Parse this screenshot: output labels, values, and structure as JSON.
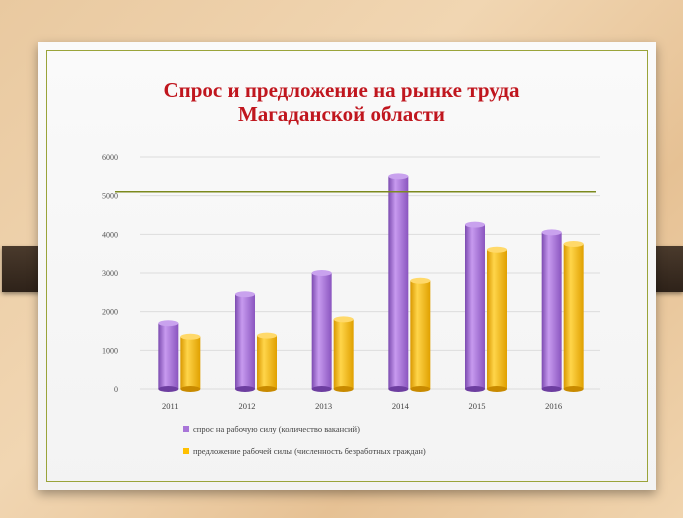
{
  "colors": {
    "demand": "#a875d8",
    "supply": "#ffc000",
    "title": "#c0161e",
    "refline": "#7c8a1e"
  },
  "chart_data": {
    "type": "bar",
    "title": "Спрос и предложение на рынке труда Магаданской области",
    "title_lines": [
      "Спрос и предложение на рынке труда",
      "Магаданской области"
    ],
    "categories": [
      "2011",
      "2012",
      "2013",
      "2014",
      "2015",
      "2016"
    ],
    "series": [
      {
        "name": "спрос на рабочую силу (количество вакансий)",
        "values": [
          1700,
          2450,
          3000,
          5500,
          4250,
          4050
        ]
      },
      {
        "name": "предложение рабочей силы (численность безработных граждан)",
        "values": [
          1350,
          1380,
          1800,
          2800,
          3600,
          3750
        ]
      }
    ],
    "ylim": [
      0,
      6000
    ],
    "yticks": [
      "0",
      "1000",
      "2000",
      "3000",
      "4000",
      "5000",
      "6000"
    ],
    "reference_line": 5100,
    "grid": true,
    "legend_position": "bottom"
  }
}
